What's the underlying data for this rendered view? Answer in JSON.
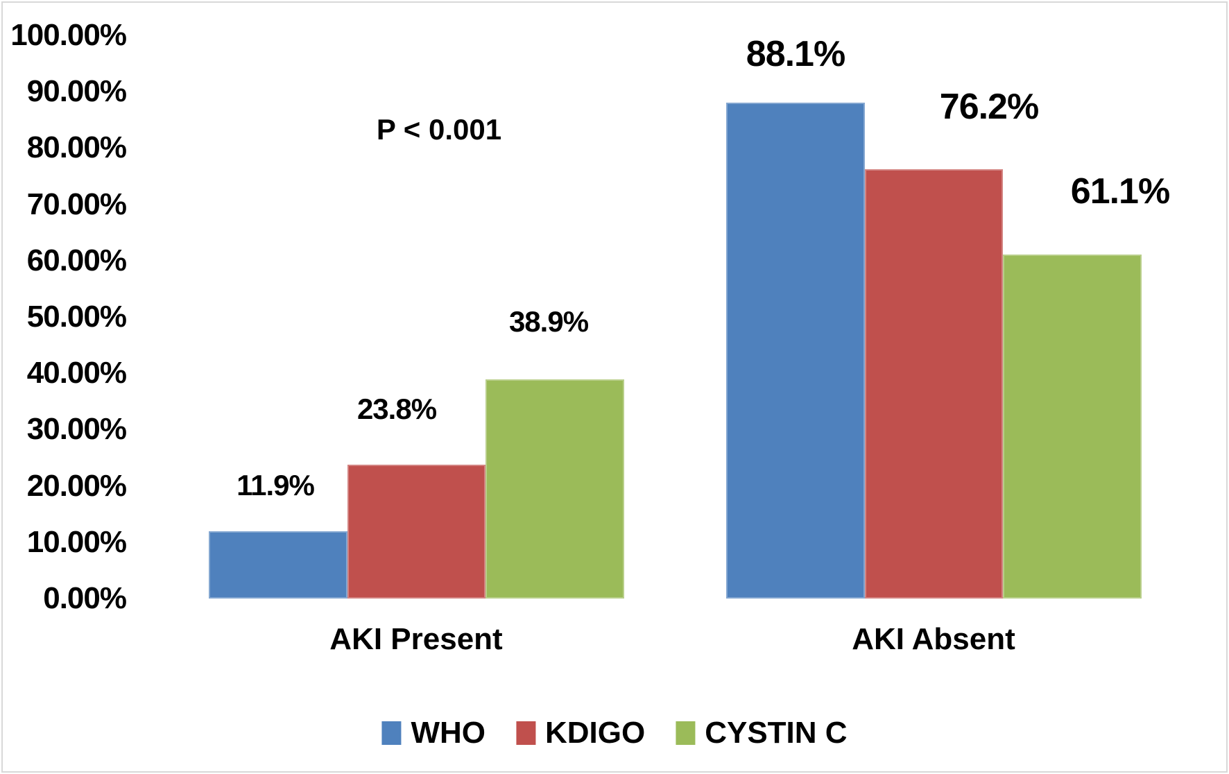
{
  "chart_data": {
    "type": "bar",
    "categories": [
      "AKI Present",
      "AKI Absent"
    ],
    "series": [
      {
        "name": "WHO",
        "color": "#4F81BD",
        "values": [
          11.9,
          88.1
        ],
        "labels": [
          "11.9%",
          "88.1%"
        ]
      },
      {
        "name": "KDIGO",
        "color": "#C0504D",
        "values": [
          23.8,
          76.2
        ],
        "labels": [
          "23.8%",
          "76.2%"
        ]
      },
      {
        "name": "CYSTIN C",
        "color": "#9BBB59",
        "values": [
          38.9,
          61.1
        ],
        "labels": [
          "38.9%",
          "61.1%"
        ]
      }
    ],
    "y_axis": {
      "min": 0,
      "max": 100,
      "tick_step": 10,
      "ticks": [
        "100.00%",
        "90.00%",
        "80.00%",
        "70.00%",
        "60.00%",
        "50.00%",
        "40.00%",
        "30.00%",
        "20.00%",
        "10.00%",
        "0.00%"
      ]
    },
    "annotation": "P < 0.001",
    "legend_position": "bottom",
    "grid": false,
    "title": ""
  }
}
